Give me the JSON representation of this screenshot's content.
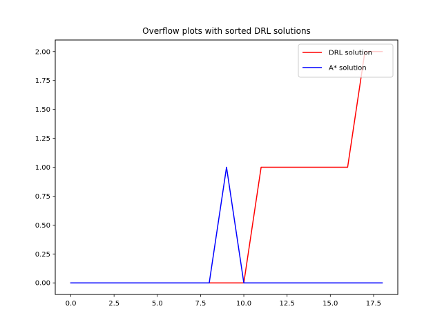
{
  "chart_data": {
    "type": "line",
    "title": "Overflow plots with sorted DRL solutions",
    "xlabel": "",
    "ylabel": "",
    "xlim": [
      -0.9,
      18.9
    ],
    "ylim": [
      -0.1,
      2.1
    ],
    "xticks": [
      "0.0",
      "2.5",
      "5.0",
      "7.5",
      "10.0",
      "12.5",
      "15.0",
      "17.5"
    ],
    "xtick_values": [
      0,
      2.5,
      5,
      7.5,
      10,
      12.5,
      15,
      17.5
    ],
    "yticks": [
      "0.00",
      "0.25",
      "0.50",
      "0.75",
      "1.00",
      "1.25",
      "1.50",
      "1.75",
      "2.00"
    ],
    "ytick_values": [
      0,
      0.25,
      0.5,
      0.75,
      1,
      1.25,
      1.5,
      1.75,
      2
    ],
    "grid": false,
    "legend_position": "top-right",
    "series": [
      {
        "name": "DRL solution",
        "color": "#ff0000",
        "x": [
          0,
          1,
          2,
          3,
          4,
          5,
          6,
          7,
          8,
          9,
          10,
          11,
          12,
          13,
          14,
          15,
          16,
          17,
          18
        ],
        "y": [
          0,
          0,
          0,
          0,
          0,
          0,
          0,
          0,
          0,
          0,
          0,
          1,
          1,
          1,
          1,
          1,
          1,
          2,
          2
        ]
      },
      {
        "name": "A* solution",
        "color": "#0000ff",
        "x": [
          0,
          1,
          2,
          3,
          4,
          5,
          6,
          7,
          8,
          9,
          10,
          11,
          12,
          13,
          14,
          15,
          16,
          17,
          18
        ],
        "y": [
          0,
          0,
          0,
          0,
          0,
          0,
          0,
          0,
          0,
          1,
          0,
          0,
          0,
          0,
          0,
          0,
          0,
          0,
          0
        ]
      }
    ]
  }
}
